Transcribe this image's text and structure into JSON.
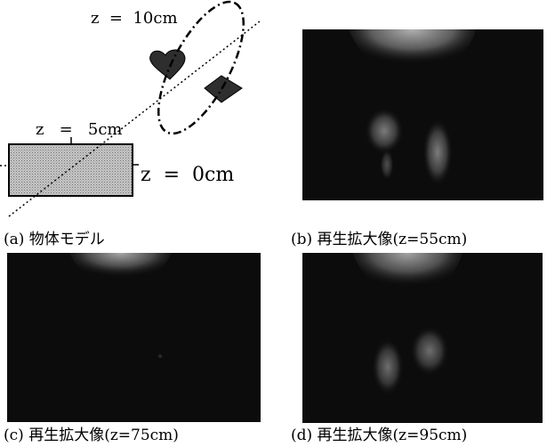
{
  "figure": {
    "panels": [
      {
        "id": "a",
        "caption": "(a) 物体モデル",
        "labels": {
          "z10": "z  =  10cm",
          "z5": "z   =   5cm",
          "z0": "z  =  0cm"
        }
      },
      {
        "id": "b",
        "caption": "(b) 再生拡大像(z=55cm)"
      },
      {
        "id": "c",
        "caption": "(c) 再生拡大像(z=75cm)"
      },
      {
        "id": "d",
        "caption": "(d) 再生拡大像(z=95cm)"
      }
    ]
  }
}
